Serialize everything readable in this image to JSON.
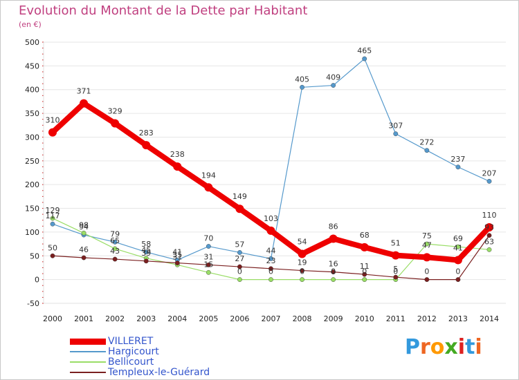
{
  "header": {
    "title": "Evolution du Montant de la Dette par Habitant",
    "unit": "(en €)"
  },
  "colors": {
    "title": "#c04080",
    "grid": "#e6e6e6",
    "axis_marks": "#cc2222"
  },
  "chart_data": {
    "type": "line",
    "title": "Evolution du Montant de la Dette par Habitant",
    "subtitle": "(en €)",
    "xlabel": "",
    "ylabel": "",
    "ylim": [
      -50,
      500
    ],
    "yticks": [
      -50,
      0,
      50,
      100,
      150,
      200,
      250,
      300,
      350,
      400,
      450,
      500
    ],
    "grid": "horizontal",
    "legend_position": "bottom-left",
    "categories": [
      "2000",
      "2001",
      "2002",
      "2003",
      "2004",
      "2005",
      "2006",
      "2007",
      "2008",
      "2009",
      "2010",
      "2011",
      "2012",
      "2013",
      "2014"
    ],
    "series": [
      {
        "name": "VILLERET",
        "color": "#ee0000",
        "width": 8,
        "values": [
          310,
          371,
          329,
          283,
          238,
          194,
          149,
          103,
          54,
          86,
          68,
          51,
          47,
          41,
          110
        ]
      },
      {
        "name": "Hargicourt",
        "color": "#5599cc",
        "width": 1.2,
        "values": [
          117,
          94,
          79,
          58,
          41,
          70,
          57,
          44,
          405,
          409,
          465,
          307,
          272,
          237,
          207
        ]
      },
      {
        "name": "Bellicourt",
        "color": "#99dd66",
        "width": 1.2,
        "values": [
          129,
          98,
          65,
          45,
          31,
          15,
          0,
          0,
          0,
          0,
          0,
          0,
          75,
          69,
          63
        ]
      },
      {
        "name": "Templeux-le-Guérard",
        "color": "#7a1f1f",
        "width": 1.2,
        "values": [
          50,
          46,
          43,
          39,
          35,
          31,
          27,
          23,
          19,
          16,
          11,
          5,
          0,
          0,
          93
        ]
      }
    ]
  },
  "legend": {
    "items": [
      "VILLERET",
      "Hargicourt",
      "Bellicourt",
      "Templeux-le-Guérard"
    ]
  },
  "logo": {
    "text": "Proxiti",
    "colors": [
      "#3399dd",
      "#ee6622",
      "#ff9900",
      "#44aa22",
      "#dd2222",
      "#3399dd",
      "#ee6622"
    ]
  }
}
